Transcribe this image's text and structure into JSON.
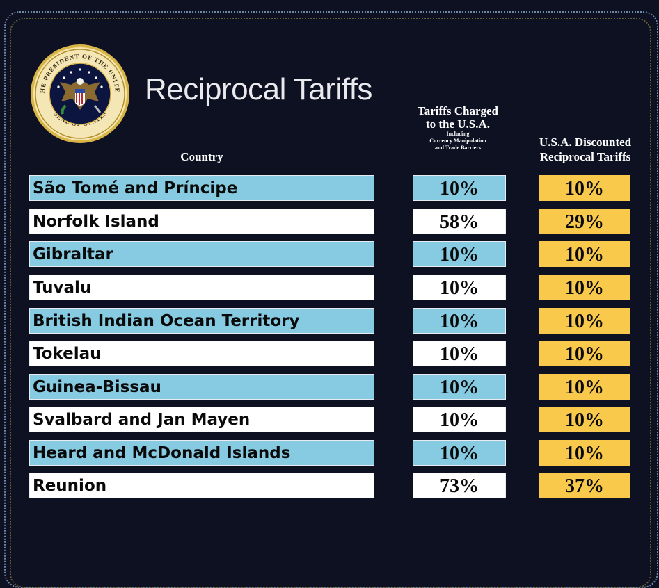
{
  "title": "Reciprocal Tariffs",
  "seal": {
    "text_top": "THE PRESIDENT OF THE UNITED",
    "text_bottom": "SEAL OF",
    "text_right": "STATES"
  },
  "headers": {
    "country": "Country",
    "charged_main_line1": "Tariffs Charged",
    "charged_main_line2": "to the U.S.A.",
    "charged_sub_line1": "Including",
    "charged_sub_line2": "Currency Manipulation",
    "charged_sub_line3": "and Trade Barriers",
    "discounted_line1": "U.S.A. Discounted",
    "discounted_line2": "Reciprocal Tariffs"
  },
  "colors": {
    "background": "#0e1122",
    "row_blue": "#86cbe2",
    "row_white": "#ffffff",
    "discounted": "#f8c94b"
  },
  "rows": [
    {
      "country": "São Tomé and Príncipe",
      "charged": "10%",
      "discounted": "10%"
    },
    {
      "country": "Norfolk Island",
      "charged": "58%",
      "discounted": "29%"
    },
    {
      "country": "Gibraltar",
      "charged": "10%",
      "discounted": "10%"
    },
    {
      "country": "Tuvalu",
      "charged": "10%",
      "discounted": "10%"
    },
    {
      "country": "British Indian Ocean Territory",
      "charged": "10%",
      "discounted": "10%"
    },
    {
      "country": "Tokelau",
      "charged": "10%",
      "discounted": "10%"
    },
    {
      "country": "Guinea-Bissau",
      "charged": "10%",
      "discounted": "10%"
    },
    {
      "country": "Svalbard and Jan Mayen",
      "charged": "10%",
      "discounted": "10%"
    },
    {
      "country": "Heard and McDonald Islands",
      "charged": "10%",
      "discounted": "10%"
    },
    {
      "country": "Reunion",
      "charged": "73%",
      "discounted": "37%"
    }
  ]
}
